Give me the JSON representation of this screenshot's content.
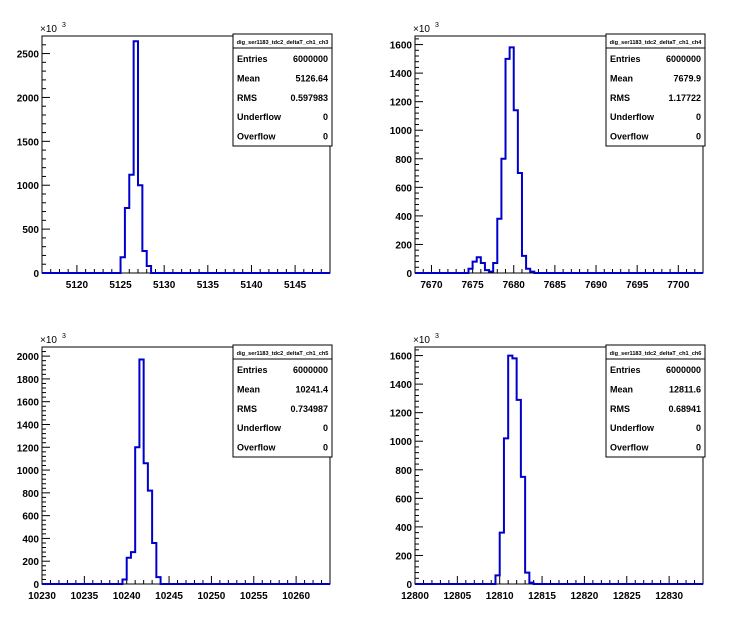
{
  "chart_data": [
    {
      "type": "histogram",
      "exponent_label": "×10",
      "exponent_power": "3",
      "xlim": [
        5116,
        5149
      ],
      "ylim": [
        0,
        2700
      ],
      "xticks": [
        5120,
        5125,
        5130,
        5135,
        5140,
        5145
      ],
      "yticks": [
        0,
        500,
        1000,
        1500,
        2000,
        2500
      ],
      "ytick_labels": [
        "0",
        "500",
        "1000",
        "1500",
        "2000",
        "2500"
      ],
      "bin_width": 0.5,
      "bins_x": [
        5125.0,
        5125.5,
        5126.0,
        5126.5,
        5127.0,
        5127.5,
        5128.0
      ],
      "bins_y": [
        180,
        740,
        1120,
        2640,
        1000,
        250,
        80
      ],
      "stats": {
        "title": "dig_ser1183_tdc2_deltaT_ch1_ch3",
        "rows": [
          {
            "label": "Entries",
            "value": "6000000"
          },
          {
            "label": "Mean",
            "value": "5126.64"
          },
          {
            "label": "RMS",
            "value": "0.597983"
          },
          {
            "label": "Underflow",
            "value": "0"
          },
          {
            "label": "Overflow",
            "value": "0"
          }
        ]
      }
    },
    {
      "type": "histogram",
      "exponent_label": "×10",
      "exponent_power": "3",
      "xlim": [
        7668,
        7703
      ],
      "ylim": [
        0,
        1660
      ],
      "xticks": [
        7670,
        7675,
        7680,
        7685,
        7690,
        7695,
        7700
      ],
      "yticks": [
        0,
        200,
        400,
        600,
        800,
        1000,
        1200,
        1400,
        1600
      ],
      "ytick_labels": [
        "0",
        "200",
        "400",
        "600",
        "800",
        "1000",
        "1200",
        "1400",
        "1600"
      ],
      "bin_width": 0.5,
      "bins_x": [
        7674.5,
        7675.0,
        7675.5,
        7676.0,
        7676.5,
        7677.0,
        7677.5,
        7678.0,
        7678.5,
        7679.0,
        7679.5,
        7680.0,
        7680.5,
        7681.0,
        7681.5,
        7682.0
      ],
      "bins_y": [
        30,
        80,
        110,
        70,
        20,
        10,
        70,
        380,
        800,
        1500,
        1580,
        1140,
        700,
        120,
        30,
        10
      ],
      "stats": {
        "title": "dig_ser1183_tdc2_deltaT_ch1_ch4",
        "rows": [
          {
            "label": "Entries",
            "value": "6000000"
          },
          {
            "label": "Mean",
            "value": "7679.9"
          },
          {
            "label": "RMS",
            "value": "1.17722"
          },
          {
            "label": "Underflow",
            "value": "0"
          },
          {
            "label": "Overflow",
            "value": "0"
          }
        ]
      }
    },
    {
      "type": "histogram",
      "exponent_label": "×10",
      "exponent_power": "3",
      "xlim": [
        10230,
        10264
      ],
      "ylim": [
        0,
        2080
      ],
      "xticks": [
        10230,
        10235,
        10240,
        10245,
        10250,
        10255,
        10260
      ],
      "yticks": [
        0,
        200,
        400,
        600,
        800,
        1000,
        1200,
        1400,
        1600,
        1800,
        2000
      ],
      "ytick_labels": [
        "0",
        "200",
        "400",
        "600",
        "800",
        "1000",
        "1200",
        "1400",
        "1600",
        "1800",
        "2000"
      ],
      "bin_width": 0.5,
      "bins_x": [
        10239.5,
        10240.0,
        10240.5,
        10241.0,
        10241.5,
        10242.0,
        10242.5,
        10243.0,
        10243.5
      ],
      "bins_y": [
        40,
        230,
        280,
        1200,
        1970,
        1060,
        820,
        360,
        60
      ],
      "stats": {
        "title": "dig_ser1183_tdc2_deltaT_ch1_ch5",
        "rows": [
          {
            "label": "Entries",
            "value": "6000000"
          },
          {
            "label": "Mean",
            "value": "10241.4"
          },
          {
            "label": "RMS",
            "value": "0.734987"
          },
          {
            "label": "Underflow",
            "value": "0"
          },
          {
            "label": "Overflow",
            "value": "0"
          }
        ]
      }
    },
    {
      "type": "histogram",
      "exponent_label": "×10",
      "exponent_power": "3",
      "xlim": [
        12800,
        12834
      ],
      "ylim": [
        0,
        1660
      ],
      "xticks": [
        12800,
        12805,
        12810,
        12815,
        12820,
        12825,
        12830
      ],
      "yticks": [
        0,
        200,
        400,
        600,
        800,
        1000,
        1200,
        1400,
        1600
      ],
      "ytick_labels": [
        "0",
        "200",
        "400",
        "600",
        "800",
        "1000",
        "1200",
        "1400",
        "1600"
      ],
      "bin_width": 0.5,
      "bins_x": [
        12809.5,
        12810.0,
        12810.5,
        12811.0,
        12811.5,
        12812.0,
        12812.5,
        12813.0,
        12813.5
      ],
      "bins_y": [
        60,
        360,
        1020,
        1600,
        1580,
        1290,
        750,
        80,
        10
      ],
      "stats": {
        "title": "dig_ser1183_tdc2_deltaT_ch1_ch6",
        "rows": [
          {
            "label": "Entries",
            "value": "6000000"
          },
          {
            "label": "Mean",
            "value": "12811.6"
          },
          {
            "label": "RMS",
            "value": "0.68941"
          },
          {
            "label": "Underflow",
            "value": "0"
          },
          {
            "label": "Overflow",
            "value": "0"
          }
        ]
      }
    }
  ],
  "colors": {
    "histogram_line": "#0000cc",
    "axis": "#000000",
    "background": "#ffffff"
  }
}
